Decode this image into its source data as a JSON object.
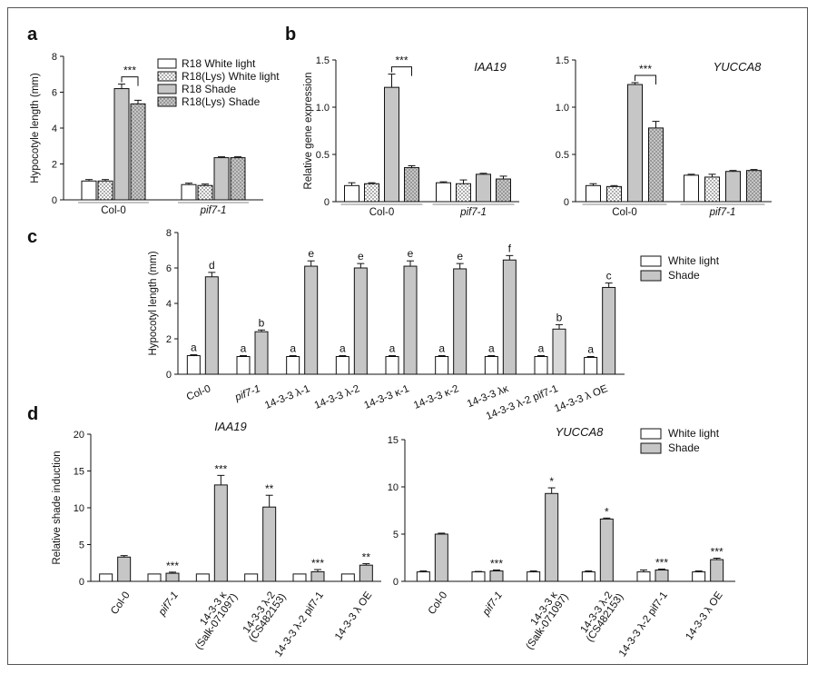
{
  "patterns": {
    "white": "#ffffff",
    "grey": "#c6c6c6",
    "dark_grey": "#999999",
    "stroke": "#111111"
  },
  "panels": {
    "a": "a",
    "b": "b",
    "c": "c",
    "d": "d"
  },
  "chart_data": [
    {
      "id": "a",
      "type": "bar",
      "ylabel": "Hypocotyle length (mm)",
      "ylim": [
        0,
        8
      ],
      "yticks": [
        0,
        2,
        4,
        6,
        8
      ],
      "categories": [
        "Col-0",
        "pif7-1"
      ],
      "series": [
        {
          "name": "R18 White light",
          "fill": "white",
          "values": [
            1.05,
            0.85
          ],
          "err": [
            0.08,
            0.08
          ]
        },
        {
          "name": "R18(Lys) White light",
          "fill": "dotted",
          "values": [
            1.05,
            0.8
          ],
          "err": [
            0.08,
            0.08
          ]
        },
        {
          "name": "R18 Shade",
          "fill": "grey",
          "values": [
            6.2,
            2.35
          ],
          "err": [
            0.25,
            0.05
          ]
        },
        {
          "name": "R18(Lys) Shade",
          "fill": "grey-dotted",
          "values": [
            5.35,
            2.35
          ],
          "err": [
            0.2,
            0.05
          ]
        }
      ],
      "bracket": {
        "category": "Col-0",
        "from": 2,
        "to": 3,
        "label": "***"
      }
    },
    {
      "id": "b1",
      "type": "bar",
      "title": "IAA19",
      "ylabel": "Relative gene expression",
      "ylim": [
        0,
        1.5
      ],
      "yticks": [
        "0",
        "0.5",
        "1.0",
        "1.5"
      ],
      "categories": [
        "Col-0",
        "pif7-1"
      ],
      "series": [
        {
          "fill": "white",
          "values": [
            0.17,
            0.2
          ],
          "err": [
            0.03,
            0.01
          ]
        },
        {
          "fill": "dotted",
          "values": [
            0.19,
            0.19
          ],
          "err": [
            0.01,
            0.04
          ]
        },
        {
          "fill": "grey",
          "values": [
            1.21,
            0.29
          ],
          "err": [
            0.14,
            0.01
          ]
        },
        {
          "fill": "grey-dotted",
          "values": [
            0.36,
            0.24
          ],
          "err": [
            0.02,
            0.03
          ]
        }
      ],
      "bracket": {
        "category": "Col-0",
        "from": 2,
        "to": 3,
        "label": "***"
      }
    },
    {
      "id": "b2",
      "type": "bar",
      "title": "YUCCA8",
      "ylim": [
        0,
        1.5
      ],
      "yticks": [
        "0",
        "0.5",
        "1.0",
        "1.5"
      ],
      "categories": [
        "Col-0",
        "pif7-1"
      ],
      "series": [
        {
          "fill": "white",
          "values": [
            0.17,
            0.28
          ],
          "err": [
            0.02,
            0.01
          ]
        },
        {
          "fill": "dotted",
          "values": [
            0.16,
            0.26
          ],
          "err": [
            0.01,
            0.03
          ]
        },
        {
          "fill": "grey",
          "values": [
            1.24,
            0.32
          ],
          "err": [
            0.02,
            0.01
          ]
        },
        {
          "fill": "grey-dotted",
          "values": [
            0.78,
            0.33
          ],
          "err": [
            0.07,
            0.01
          ]
        }
      ],
      "bracket": {
        "category": "Col-0",
        "from": 2,
        "to": 3,
        "label": "***"
      }
    },
    {
      "id": "c",
      "type": "bar",
      "ylabel": "Hypocotyl length (mm)",
      "ylim": [
        0,
        8
      ],
      "yticks": [
        0,
        2,
        4,
        6,
        8
      ],
      "categories": [
        "Col-0",
        "pif7-1",
        "14-3-3 λ-1",
        "14-3-3 λ-2",
        "14-3-3 κ-1",
        "14-3-3 κ-2",
        "14-3-3 λκ",
        "14-3-3 λ-2 pif7-1",
        "14-3-3 λ OE"
      ],
      "series": [
        {
          "name": "White light",
          "fill": "white",
          "values": [
            1.05,
            1.0,
            1.0,
            1.0,
            1.0,
            1.0,
            1.0,
            1.0,
            0.95
          ],
          "err": [
            0.05,
            0.05,
            0.05,
            0.05,
            0.05,
            0.05,
            0.05,
            0.05,
            0.05
          ],
          "letters": [
            "a",
            "a",
            "a",
            "a",
            "a",
            "a",
            "a",
            "a",
            "a"
          ]
        },
        {
          "name": "Shade",
          "fill": "grey",
          "values": [
            5.5,
            2.4,
            6.1,
            6.0,
            6.1,
            5.95,
            6.45,
            2.55,
            4.9
          ],
          "err": [
            0.25,
            0.1,
            0.3,
            0.25,
            0.3,
            0.3,
            0.25,
            0.25,
            0.25
          ],
          "letters": [
            "d",
            "b",
            "e",
            "e",
            "e",
            "e",
            "f",
            "b",
            "c"
          ]
        }
      ]
    },
    {
      "id": "d1",
      "type": "bar",
      "title": "IAA19",
      "ylabel": "Relative shade induction",
      "ylim": [
        0,
        20
      ],
      "yticks": [
        0,
        5,
        10,
        15,
        20
      ],
      "categories": [
        {
          "lines": [
            "Col-0"
          ]
        },
        {
          "lines": [
            "pif7-1"
          ],
          "italic": true
        },
        {
          "lines": [
            "14-3-3 κ",
            "(Salk-071097)"
          ]
        },
        {
          "lines": [
            "14-3-3 λ-2",
            "(CS482153)"
          ]
        },
        {
          "lines": [
            "14-3-3 λ-2 pif7-1"
          ]
        },
        {
          "lines": [
            "14-3-3 λ OE"
          ]
        }
      ],
      "series": [
        {
          "name": "White light",
          "fill": "white",
          "values": [
            1,
            1,
            1,
            1,
            1,
            1
          ],
          "err": [
            0,
            0,
            0,
            0,
            0,
            0
          ]
        },
        {
          "name": "Shade",
          "fill": "grey",
          "values": [
            3.3,
            1.1,
            13.1,
            10.1,
            1.3,
            2.2
          ],
          "err": [
            0.2,
            0.15,
            1.3,
            1.6,
            0.3,
            0.2
          ],
          "stars": [
            "",
            "***",
            "***",
            "**",
            "***",
            "**"
          ]
        }
      ]
    },
    {
      "id": "d2",
      "type": "bar",
      "title": "YUCCA8",
      "ylim": [
        0,
        15
      ],
      "yticks": [
        0,
        5,
        10,
        15
      ],
      "categories": [
        {
          "lines": [
            "Col-0"
          ]
        },
        {
          "lines": [
            "pif7-1"
          ],
          "italic": true
        },
        {
          "lines": [
            "14-3-3 κ",
            "(Salk-071097)"
          ]
        },
        {
          "lines": [
            "14-3-3 λ-2",
            "(CS482153)"
          ]
        },
        {
          "lines": [
            "14-3-3 λ-2 pif7-1"
          ]
        },
        {
          "lines": [
            "14-3-3 λ OE"
          ]
        }
      ],
      "series": [
        {
          "name": "White light",
          "fill": "white",
          "values": [
            1,
            1,
            1,
            1,
            1,
            1
          ],
          "err": [
            0.1,
            0.05,
            0.1,
            0.1,
            0.2,
            0.1
          ]
        },
        {
          "name": "Shade",
          "fill": "grey",
          "values": [
            5.0,
            1.1,
            9.3,
            6.6,
            1.2,
            2.3
          ],
          "err": [
            0.1,
            0.1,
            0.6,
            0.1,
            0.1,
            0.15
          ],
          "stars": [
            "",
            "***",
            "*",
            "*",
            "***",
            "***"
          ]
        }
      ]
    }
  ]
}
